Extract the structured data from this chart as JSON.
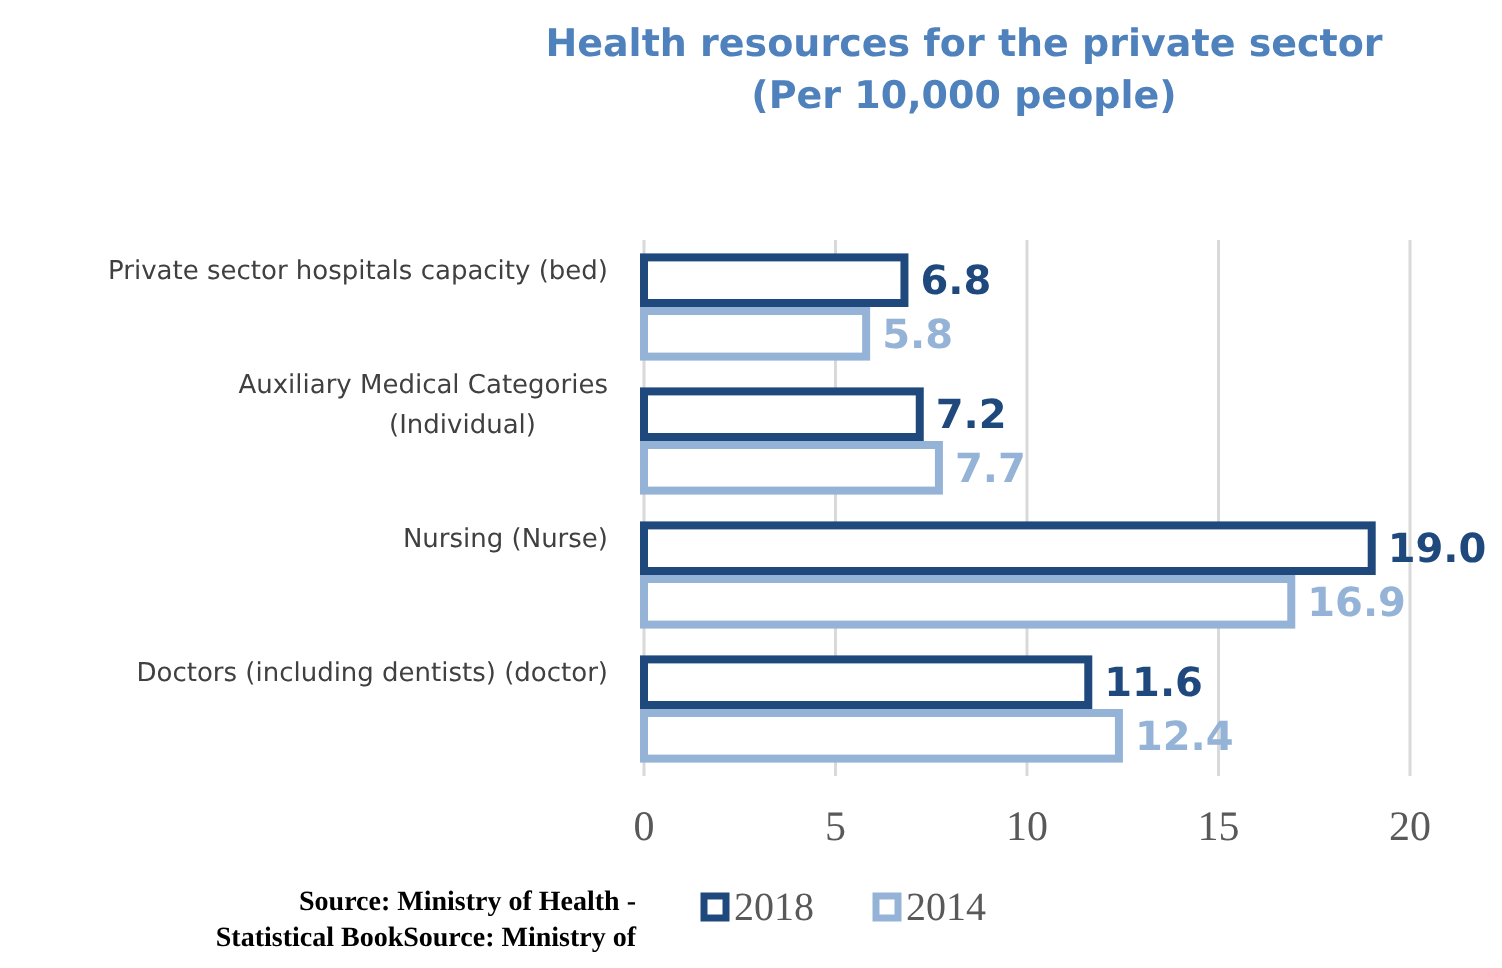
{
  "chart_data": {
    "type": "bar",
    "orientation": "horizontal",
    "title": "Health resources for the private sector\n(Per 10,000 people)",
    "categories": [
      "Private sector hospitals capacity (bed)",
      "Auxiliary Medical Categories (Individual)",
      "Nursing (Nurse)",
      "Doctors (including dentists) (doctor)"
    ],
    "series": [
      {
        "name": "2018",
        "color": "#1f497d",
        "values": [
          6.8,
          7.2,
          19.0,
          11.6
        ],
        "value_labels": [
          "6.8",
          "7.2",
          "19.0",
          "11.6"
        ]
      },
      {
        "name": "2014",
        "color": "#95b3d7",
        "values": [
          5.8,
          7.7,
          16.9,
          12.4
        ],
        "value_labels": [
          "5.8",
          "7.7",
          "16.9",
          "12.4"
        ]
      }
    ],
    "xlim": [
      0,
      20
    ],
    "xticks": [
      0,
      5,
      10,
      15,
      20
    ],
    "grid": "x",
    "legend": "bottom",
    "annotations": [
      "Source: Ministry of Health -\nStatistical BookSource: Ministry of"
    ]
  }
}
